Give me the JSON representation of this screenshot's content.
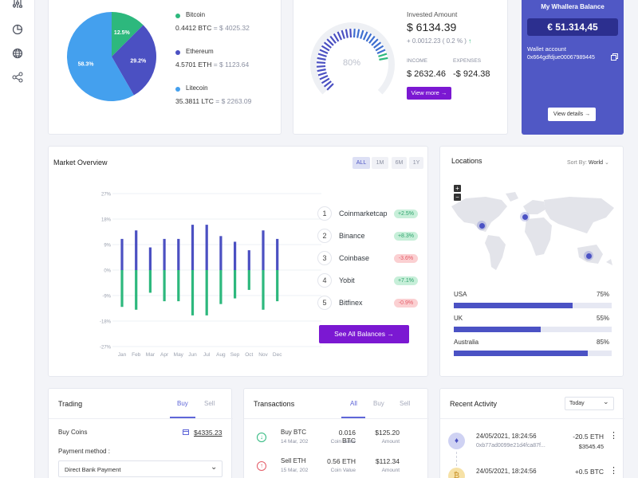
{
  "sidebar": {
    "icons": [
      "sliders-icon",
      "pie-chart-icon",
      "globe-icon",
      "share-icon"
    ]
  },
  "portfolio": {
    "chart_data": {
      "type": "pie",
      "values": [
        12.5,
        29.2,
        58.3
      ],
      "labels": [
        "12.5%",
        "29.2%",
        "58.3%"
      ],
      "colors": [
        "#2db87d",
        "#4b50c2",
        "#44a0ee"
      ]
    },
    "legend": [
      {
        "name": "Bitcoin",
        "amount": "0.4412 BTC",
        "value": " = $ 4025.32",
        "color": "#2db87d"
      },
      {
        "name": "Ethereum",
        "amount": "4.5701 ETH",
        "value": " = $ 1123.64",
        "color": "#4b50c2"
      },
      {
        "name": "Litecoin",
        "amount": "35.3811 LTC",
        "value": " = $ 2263.09",
        "color": "#44a0ee"
      }
    ]
  },
  "invest": {
    "gauge_value": "80%",
    "gauge_fraction": 0.8,
    "title": "Invested Amount",
    "amount": "$ 6134.39",
    "change": "+ 0.0012.23 ( 0.2 % )",
    "income_label": "INCOME",
    "income": "$ 2632.46",
    "expenses_label": "EXPENSES",
    "expenses": "-$ 924.38",
    "view_more": "View more →"
  },
  "balance": {
    "title": "My Whallera Balance",
    "amount": "€ 51.314,45",
    "wallet_label": "Wallet account",
    "wallet_id": "0x664gdfdjue00067989445",
    "details": "View details →"
  },
  "market": {
    "title": "Market Overview",
    "tabs": [
      "ALL",
      "1M",
      "6M",
      "1Y"
    ],
    "chart_data": {
      "type": "bar",
      "categories": [
        "Jan",
        "Feb",
        "Mar",
        "Apr",
        "May",
        "Jun",
        "Jul",
        "Aug",
        "Sep",
        "Oct",
        "Nov",
        "Dec"
      ],
      "series": [
        {
          "values": [
            11,
            14,
            8,
            11,
            11,
            16,
            16,
            12,
            10,
            7,
            14,
            11
          ]
        },
        {
          "values": [
            -13,
            -14,
            -8,
            -11,
            -11,
            -16,
            -16,
            -12,
            -10,
            -7,
            -14,
            -11
          ]
        }
      ],
      "yticks": [
        "27%",
        "18%",
        "9%",
        "0%",
        "-9%",
        "-18%",
        "-27%"
      ],
      "ylim": [
        -27,
        27
      ],
      "colors": [
        "#4b50c2",
        "#2db87d"
      ]
    },
    "exchanges": [
      {
        "rank": "1",
        "name": "Coinmarketcap",
        "change": "+2.5%",
        "dir": "up"
      },
      {
        "rank": "2",
        "name": "Binance",
        "change": "+8.3%",
        "dir": "up"
      },
      {
        "rank": "3",
        "name": "Coinbase",
        "change": "-3.6%",
        "dir": "down"
      },
      {
        "rank": "4",
        "name": "Yobit",
        "change": "+7.1%",
        "dir": "up"
      },
      {
        "rank": "5",
        "name": "Bitfinex",
        "change": "-0.9%",
        "dir": "down"
      }
    ],
    "see_all": "See All Balances →"
  },
  "locations": {
    "title": "Locations",
    "sort_label": "Sort By:",
    "sort_value": "World",
    "zoom_in": "+",
    "zoom_out": "−",
    "items": [
      {
        "name": "USA",
        "percent": "75%",
        "value": 0.75
      },
      {
        "name": "UK",
        "percent": "55%",
        "value": 0.55
      },
      {
        "name": "Australia",
        "percent": "85%",
        "value": 0.85
      }
    ]
  },
  "trading": {
    "title": "Trading",
    "tab_buy": "Buy",
    "tab_sell": "Sell",
    "buy_coins": "Buy Coins",
    "balance": "$4335.23",
    "method_label": "Payment method :",
    "method_value": "Direct Bank Payment"
  },
  "transactions": {
    "title": "Transactions",
    "tabs": [
      "All",
      "Buy",
      "Sell"
    ],
    "rows": [
      {
        "type": "Buy BTC",
        "date": "14 Mar, 202",
        "coin": "0.016 BTC",
        "coin_label": "Coin Value",
        "amount": "$125.20",
        "amount_label": "Amount",
        "color": "#2db87d",
        "arrow": "↓"
      },
      {
        "type": "Sell ETH",
        "date": "15 Mar, 202",
        "coin": "0.56 ETH",
        "coin_label": "Coin Value",
        "amount": "$112.34",
        "amount_label": "Amount",
        "color": "#e45a66",
        "arrow": "↑"
      }
    ]
  },
  "activity": {
    "title": "Recent Activity",
    "filter": "Today",
    "rows": [
      {
        "date": "24/05/2021, 18:24:56",
        "hash": "0xb77ad0099e21d4fca87f...",
        "amount": "-20.5 ETH",
        "usd": "$3545.45"
      },
      {
        "date": "24/05/2021, 18:24:56",
        "hash": "",
        "amount": "+0.5 BTC",
        "usd": ""
      }
    ]
  }
}
